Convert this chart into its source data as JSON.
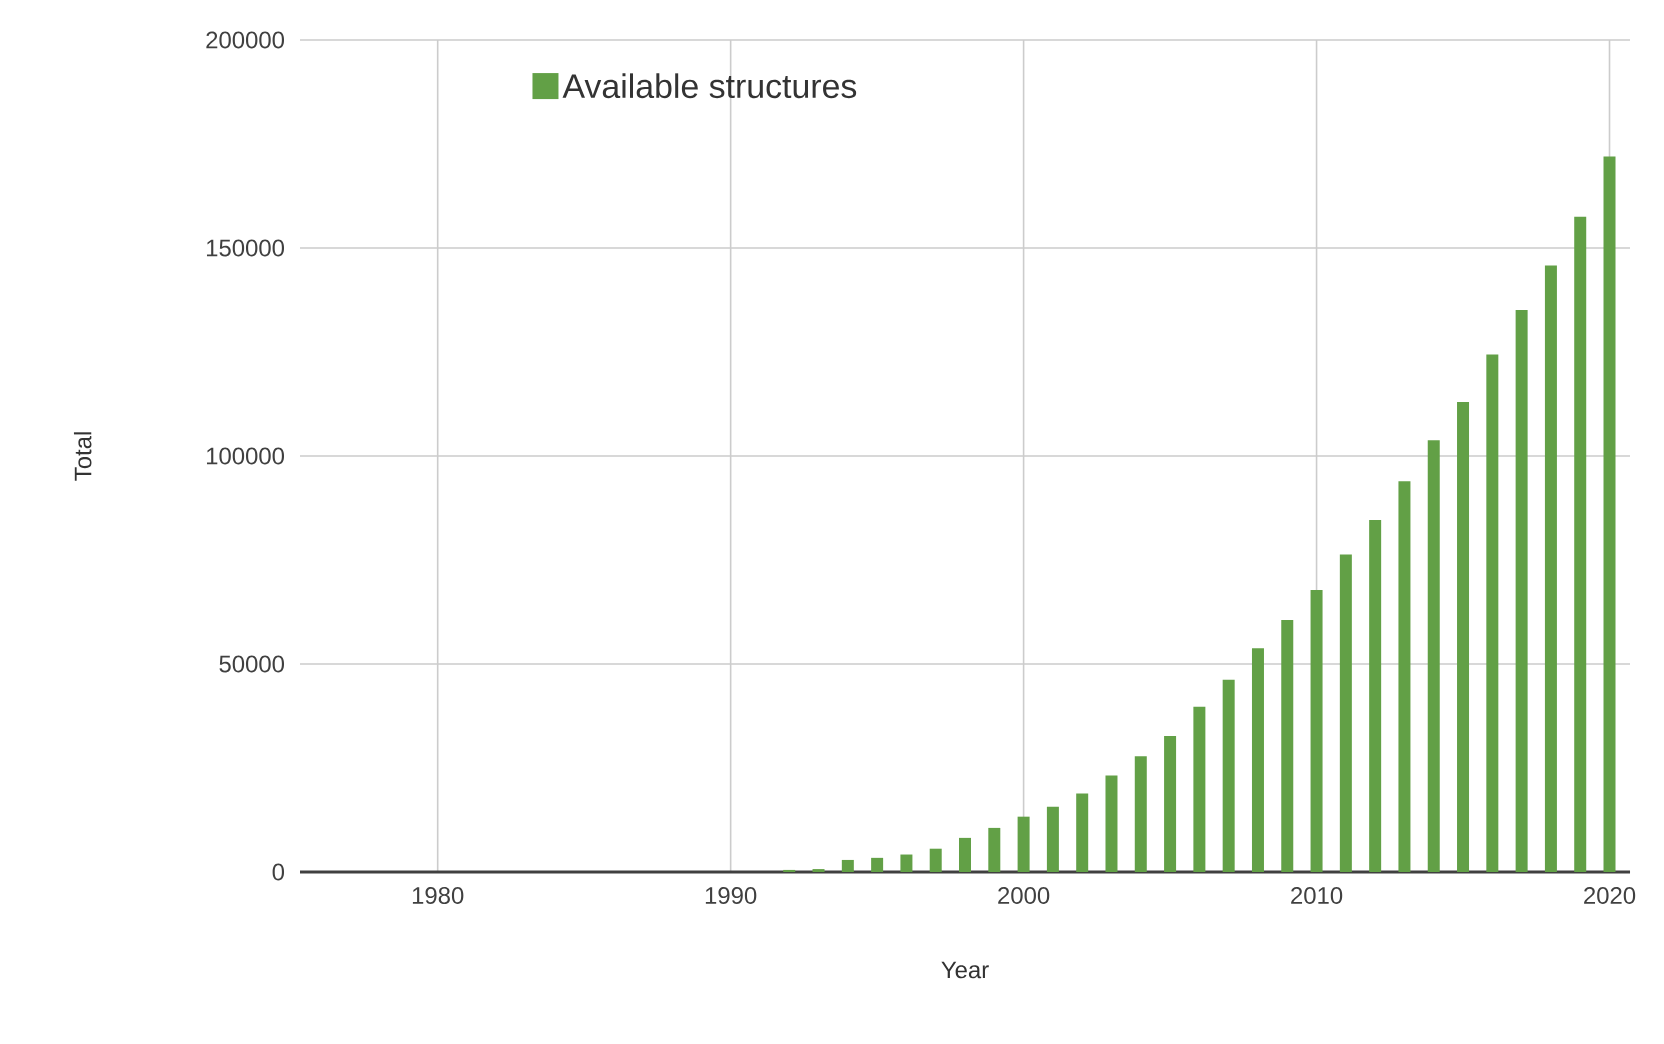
{
  "chart_data": {
    "type": "bar",
    "xlabel": "Year",
    "ylabel": "Total",
    "x": [
      1992,
      1993,
      1994,
      1995,
      1996,
      1997,
      1998,
      1999,
      2000,
      2001,
      2002,
      2003,
      2004,
      2005,
      2006,
      2007,
      2008,
      2009,
      2010,
      2011,
      2012,
      2013,
      2014,
      2015,
      2016,
      2017,
      2018,
      2019,
      2020
    ],
    "series": [
      {
        "name": "Available structures",
        "color": "#62a046",
        "values": [
          500,
          700,
          2900,
          3400,
          4200,
          5600,
          8200,
          10600,
          13300,
          15700,
          18900,
          23200,
          27800,
          32700,
          39700,
          46200,
          53800,
          60600,
          67800,
          76300,
          84600,
          93900,
          103800,
          113000,
          124400,
          135100,
          145800,
          157500,
          172000
        ]
      }
    ],
    "xlim": [
      1975.3,
      2020.7
    ],
    "ylim": [
      0,
      200000
    ],
    "xticks": [
      1980,
      1990,
      2000,
      2010,
      2020
    ],
    "yticks": [
      0,
      50000,
      100000,
      150000,
      200000
    ],
    "grid": true,
    "legend": "top left"
  }
}
